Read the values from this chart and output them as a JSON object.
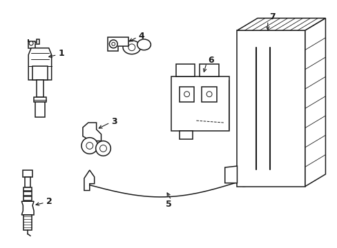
{
  "bg_color": "#ffffff",
  "line_color": "#1a1a1a",
  "lw": 1.1,
  "fig_width": 4.89,
  "fig_height": 3.6
}
